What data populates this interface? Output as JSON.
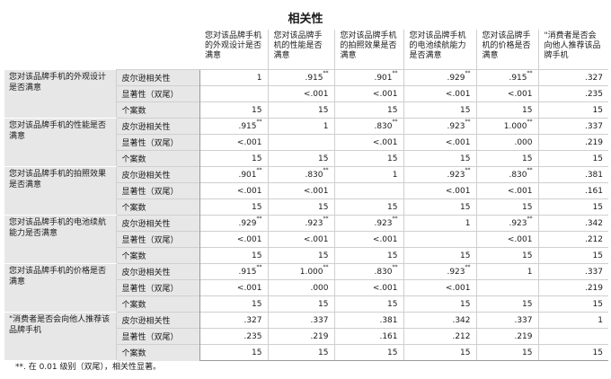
{
  "title": "相关性",
  "columns": [
    "您对该品牌手机的外观设计是否满意",
    "您对该品牌手机的性能是否满意",
    "您对该品牌手机的拍照效果是否满意",
    "您对该品牌手机的电池续航能力是否满意",
    "您对该品牌手机的价格是否满意",
    "消费者是否会向他人推荐该品牌手机"
  ],
  "column_prefix": [
    "",
    "",
    "",
    "",
    "",
    "\""
  ],
  "stat_labels": [
    "皮尔逊相关性",
    "显著性（双尾）",
    "个案数"
  ],
  "rows": [
    {
      "label": "您对该品牌手机的外观设计是否满意",
      "pearson": [
        {
          "v": "1",
          "s": ""
        },
        {
          "v": ".915",
          "s": "**"
        },
        {
          "v": ".901",
          "s": "**"
        },
        {
          "v": ".929",
          "s": "**"
        },
        {
          "v": ".915",
          "s": "**"
        },
        {
          "v": ".327",
          "s": ""
        }
      ],
      "sig": [
        "",
        "<.001",
        "<.001",
        "<.001",
        "<.001",
        ".235"
      ],
      "n": [
        "15",
        "15",
        "15",
        "15",
        "15",
        "15"
      ]
    },
    {
      "label": "您对该品牌手机的性能是否满意",
      "pearson": [
        {
          "v": ".915",
          "s": "**"
        },
        {
          "v": "1",
          "s": ""
        },
        {
          "v": ".830",
          "s": "**"
        },
        {
          "v": ".923",
          "s": "**"
        },
        {
          "v": "1.000",
          "s": "**"
        },
        {
          "v": ".337",
          "s": ""
        }
      ],
      "sig": [
        "<.001",
        "",
        "<.001",
        "<.001",
        ".000",
        ".219"
      ],
      "n": [
        "15",
        "15",
        "15",
        "15",
        "15",
        "15"
      ]
    },
    {
      "label": "您对该品牌手机的拍照效果是否满意",
      "pearson": [
        {
          "v": ".901",
          "s": "**"
        },
        {
          "v": ".830",
          "s": "**"
        },
        {
          "v": "1",
          "s": ""
        },
        {
          "v": ".923",
          "s": "**"
        },
        {
          "v": ".830",
          "s": "**"
        },
        {
          "v": ".381",
          "s": ""
        }
      ],
      "sig": [
        "<.001",
        "<.001",
        "",
        "<.001",
        "<.001",
        ".161"
      ],
      "n": [
        "15",
        "15",
        "15",
        "15",
        "15",
        "15"
      ]
    },
    {
      "label": "您对该品牌手机的电池续航能力是否满意",
      "pearson": [
        {
          "v": ".929",
          "s": "**"
        },
        {
          "v": ".923",
          "s": "**"
        },
        {
          "v": ".923",
          "s": "**"
        },
        {
          "v": "1",
          "s": ""
        },
        {
          "v": ".923",
          "s": "**"
        },
        {
          "v": ".342",
          "s": ""
        }
      ],
      "sig": [
        "<.001",
        "<.001",
        "<.001",
        "",
        "<.001",
        ".212"
      ],
      "n": [
        "15",
        "15",
        "15",
        "15",
        "15",
        "15"
      ]
    },
    {
      "label": "您对该品牌手机的价格是否满意",
      "pearson": [
        {
          "v": ".915",
          "s": "**"
        },
        {
          "v": "1.000",
          "s": "**"
        },
        {
          "v": ".830",
          "s": "**"
        },
        {
          "v": ".923",
          "s": "**"
        },
        {
          "v": "1",
          "s": ""
        },
        {
          "v": ".337",
          "s": ""
        }
      ],
      "sig": [
        "<.001",
        ".000",
        "<.001",
        "<.001",
        "",
        ".219"
      ],
      "n": [
        "15",
        "15",
        "15",
        "15",
        "15",
        "15"
      ]
    },
    {
      "label": "\"消费者是否会向他人推荐该品牌手机",
      "pearson": [
        {
          "v": ".327",
          "s": ""
        },
        {
          "v": ".337",
          "s": ""
        },
        {
          "v": ".381",
          "s": ""
        },
        {
          "v": ".342",
          "s": ""
        },
        {
          "v": ".337",
          "s": ""
        },
        {
          "v": "1",
          "s": ""
        }
      ],
      "sig": [
        ".235",
        ".219",
        ".161",
        ".212",
        ".219",
        ""
      ],
      "n": [
        "15",
        "15",
        "15",
        "15",
        "15",
        "15"
      ]
    }
  ],
  "footnote": "**. 在 0.01 级别（双尾），相关性显著。"
}
